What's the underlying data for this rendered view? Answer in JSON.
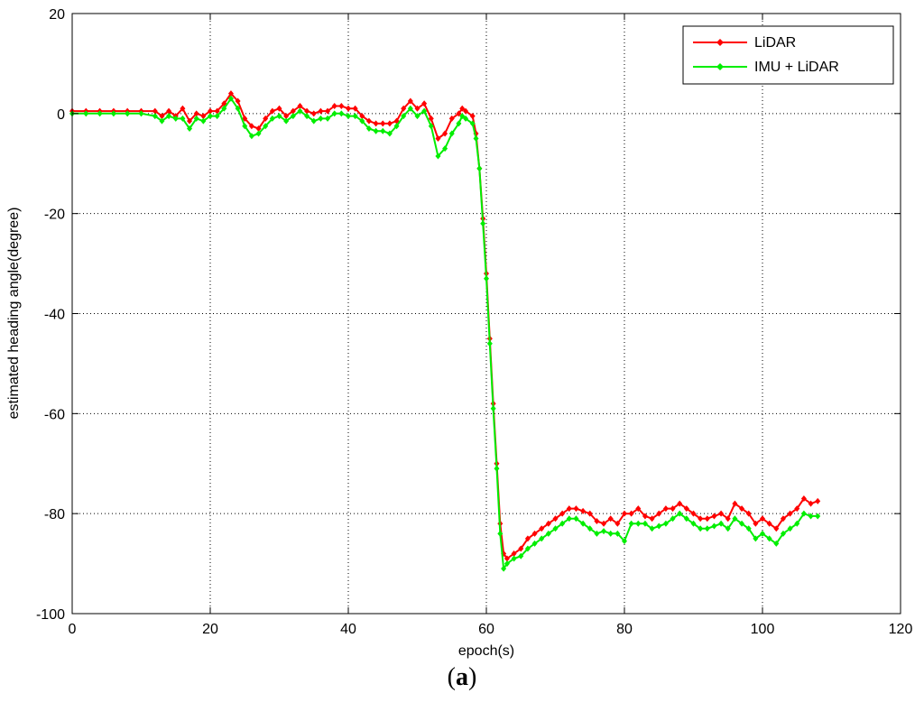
{
  "caption": {
    "open": "(",
    "letter": "a",
    "close": ")"
  },
  "chart_data": {
    "type": "line",
    "xlabel": "epoch(s)",
    "ylabel": "estimated heading angle(degree)",
    "xlim": [
      0,
      120
    ],
    "ylim": [
      -100,
      20
    ],
    "xticks": [
      0,
      20,
      40,
      60,
      80,
      100,
      120
    ],
    "yticks": [
      20,
      0,
      -20,
      -40,
      -60,
      -80,
      -100
    ],
    "grid": true,
    "legend_position": "top-right",
    "series": [
      {
        "name": "LiDAR",
        "color": "#ff0000",
        "points": [
          [
            0,
            0.5
          ],
          [
            2,
            0.5
          ],
          [
            4,
            0.5
          ],
          [
            6,
            0.5
          ],
          [
            8,
            0.5
          ],
          [
            10,
            0.5
          ],
          [
            12,
            0.5
          ],
          [
            13,
            -0.5
          ],
          [
            14,
            0.5
          ],
          [
            15,
            -0.5
          ],
          [
            16,
            1
          ],
          [
            17,
            -1.5
          ],
          [
            18,
            0
          ],
          [
            19,
            -0.5
          ],
          [
            20,
            0.5
          ],
          [
            21,
            0.5
          ],
          [
            22,
            2
          ],
          [
            23,
            4
          ],
          [
            24,
            2.5
          ],
          [
            25,
            -1
          ],
          [
            26,
            -2.5
          ],
          [
            27,
            -3
          ],
          [
            28,
            -1
          ],
          [
            29,
            0.5
          ],
          [
            30,
            1
          ],
          [
            31,
            -0.5
          ],
          [
            32,
            0.5
          ],
          [
            33,
            1.5
          ],
          [
            34,
            0.5
          ],
          [
            35,
            0
          ],
          [
            36,
            0.5
          ],
          [
            37,
            0.5
          ],
          [
            38,
            1.5
          ],
          [
            39,
            1.5
          ],
          [
            40,
            1
          ],
          [
            41,
            1
          ],
          [
            42,
            -0.5
          ],
          [
            43,
            -1.5
          ],
          [
            44,
            -2
          ],
          [
            45,
            -2
          ],
          [
            46,
            -2
          ],
          [
            47,
            -1.5
          ],
          [
            48,
            1
          ],
          [
            49,
            2.5
          ],
          [
            50,
            1
          ],
          [
            51,
            2
          ],
          [
            52,
            -1
          ],
          [
            53,
            -5
          ],
          [
            54,
            -4
          ],
          [
            55,
            -1
          ],
          [
            56,
            0
          ],
          [
            56.5,
            1
          ],
          [
            57,
            0.5
          ],
          [
            58,
            -0.5
          ],
          [
            58.5,
            -4
          ],
          [
            59,
            -11
          ],
          [
            59.5,
            -21
          ],
          [
            60,
            -32
          ],
          [
            60.5,
            -45
          ],
          [
            61,
            -58
          ],
          [
            61.5,
            -70
          ],
          [
            62,
            -82
          ],
          [
            62.5,
            -88
          ],
          [
            63,
            -89
          ],
          [
            64,
            -88
          ],
          [
            65,
            -87
          ],
          [
            66,
            -85
          ],
          [
            67,
            -84
          ],
          [
            68,
            -83
          ],
          [
            69,
            -82
          ],
          [
            70,
            -81
          ],
          [
            71,
            -80
          ],
          [
            72,
            -79
          ],
          [
            73,
            -79
          ],
          [
            74,
            -79.5
          ],
          [
            75,
            -80
          ],
          [
            76,
            -81.5
          ],
          [
            77,
            -82
          ],
          [
            78,
            -81
          ],
          [
            79,
            -82
          ],
          [
            80,
            -80
          ],
          [
            81,
            -80
          ],
          [
            82,
            -79
          ],
          [
            83,
            -80.5
          ],
          [
            84,
            -81
          ],
          [
            85,
            -80
          ],
          [
            86,
            -79
          ],
          [
            87,
            -79
          ],
          [
            88,
            -78
          ],
          [
            89,
            -79
          ],
          [
            90,
            -80
          ],
          [
            91,
            -81
          ],
          [
            92,
            -81
          ],
          [
            93,
            -80.5
          ],
          [
            94,
            -80
          ],
          [
            95,
            -81
          ],
          [
            96,
            -78
          ],
          [
            97,
            -79
          ],
          [
            98,
            -80
          ],
          [
            99,
            -82
          ],
          [
            100,
            -81
          ],
          [
            101,
            -82
          ],
          [
            102,
            -83
          ],
          [
            103,
            -81
          ],
          [
            104,
            -80
          ],
          [
            105,
            -79
          ],
          [
            106,
            -77
          ],
          [
            107,
            -78
          ],
          [
            108,
            -77.5
          ]
        ]
      },
      {
        "name": "IMU + LiDAR",
        "color": "#00ee00",
        "points": [
          [
            0,
            0
          ],
          [
            2,
            0
          ],
          [
            4,
            0
          ],
          [
            6,
            0
          ],
          [
            8,
            0
          ],
          [
            10,
            0
          ],
          [
            12,
            -0.5
          ],
          [
            13,
            -1.5
          ],
          [
            14,
            -0.5
          ],
          [
            15,
            -1
          ],
          [
            16,
            -1
          ],
          [
            17,
            -3
          ],
          [
            18,
            -1
          ],
          [
            19,
            -1.5
          ],
          [
            20,
            -0.5
          ],
          [
            21,
            -0.5
          ],
          [
            22,
            1
          ],
          [
            23,
            3
          ],
          [
            24,
            1
          ],
          [
            25,
            -2.5
          ],
          [
            26,
            -4.5
          ],
          [
            27,
            -4
          ],
          [
            28,
            -2.5
          ],
          [
            29,
            -1
          ],
          [
            30,
            -0.5
          ],
          [
            31,
            -1.5
          ],
          [
            32,
            -0.5
          ],
          [
            33,
            0.5
          ],
          [
            34,
            -0.5
          ],
          [
            35,
            -1.5
          ],
          [
            36,
            -1
          ],
          [
            37,
            -1
          ],
          [
            38,
            0
          ],
          [
            39,
            0
          ],
          [
            40,
            -0.5
          ],
          [
            41,
            -0.5
          ],
          [
            42,
            -1.5
          ],
          [
            43,
            -3
          ],
          [
            44,
            -3.5
          ],
          [
            45,
            -3.5
          ],
          [
            46,
            -4
          ],
          [
            47,
            -2.5
          ],
          [
            48,
            -0.5
          ],
          [
            49,
            1
          ],
          [
            50,
            -0.5
          ],
          [
            51,
            0.5
          ],
          [
            52,
            -2.5
          ],
          [
            53,
            -8.5
          ],
          [
            54,
            -7
          ],
          [
            55,
            -4
          ],
          [
            56,
            -2
          ],
          [
            56.5,
            -0.5
          ],
          [
            57,
            -1
          ],
          [
            58,
            -2
          ],
          [
            58.5,
            -5
          ],
          [
            59,
            -11
          ],
          [
            59.5,
            -22
          ],
          [
            60,
            -33
          ],
          [
            60.5,
            -46
          ],
          [
            61,
            -59
          ],
          [
            61.5,
            -71
          ],
          [
            62,
            -84
          ],
          [
            62.5,
            -91
          ],
          [
            63,
            -90
          ],
          [
            64,
            -89
          ],
          [
            65,
            -88.5
          ],
          [
            66,
            -87
          ],
          [
            67,
            -86
          ],
          [
            68,
            -85
          ],
          [
            69,
            -84
          ],
          [
            70,
            -83
          ],
          [
            71,
            -82
          ],
          [
            72,
            -81
          ],
          [
            73,
            -81
          ],
          [
            74,
            -82
          ],
          [
            75,
            -83
          ],
          [
            76,
            -84
          ],
          [
            77,
            -83.5
          ],
          [
            78,
            -84
          ],
          [
            79,
            -84
          ],
          [
            80,
            -85.5
          ],
          [
            81,
            -82
          ],
          [
            82,
            -82
          ],
          [
            83,
            -82
          ],
          [
            84,
            -83
          ],
          [
            85,
            -82.5
          ],
          [
            86,
            -82
          ],
          [
            87,
            -81
          ],
          [
            88,
            -80
          ],
          [
            89,
            -81
          ],
          [
            90,
            -82
          ],
          [
            91,
            -83
          ],
          [
            92,
            -83
          ],
          [
            93,
            -82.5
          ],
          [
            94,
            -82
          ],
          [
            95,
            -83
          ],
          [
            96,
            -81
          ],
          [
            97,
            -82
          ],
          [
            98,
            -83
          ],
          [
            99,
            -85
          ],
          [
            100,
            -84
          ],
          [
            101,
            -85
          ],
          [
            102,
            -86
          ],
          [
            103,
            -84
          ],
          [
            104,
            -83
          ],
          [
            105,
            -82
          ],
          [
            106,
            -80
          ],
          [
            107,
            -80.5
          ],
          [
            108,
            -80.5
          ]
        ]
      }
    ]
  }
}
